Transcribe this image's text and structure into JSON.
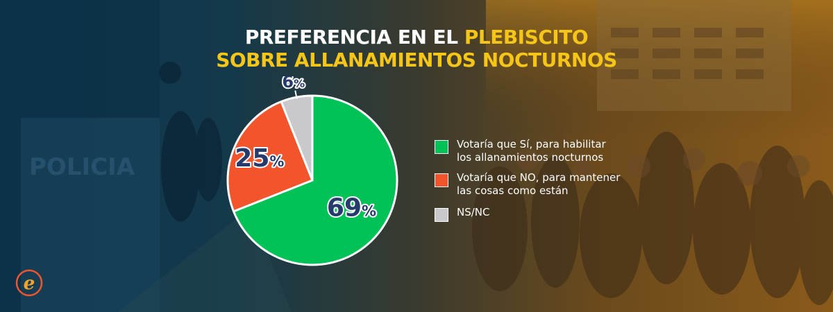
{
  "title": {
    "line1_white": "PREFERENCIA EN EL ",
    "line1_yellow": "PLEBISCITO",
    "line2_yellow": "SOBRE ALLANAMIENTOS NOCTURNOS"
  },
  "colors": {
    "accent_yellow": "#f5c518",
    "si": "#00c257",
    "no": "#f2552c",
    "nsnc": "#c9c9cd",
    "label_fill": "#263a6b"
  },
  "background": {
    "sign_text": "POLICIA"
  },
  "chart_data": {
    "type": "pie",
    "title": "PREFERENCIA EN EL PLEBISCITO SOBRE ALLANAMIENTOS NOCTURNOS",
    "slices": [
      {
        "name": "Votaría que Sí, para habilitar los allanamientos nocturnos",
        "value": 69,
        "label": "69",
        "color": "#00c257"
      },
      {
        "name": "Votaría que NO, para mantener las cosas como están",
        "value": 25,
        "label": "25",
        "color": "#f2552c"
      },
      {
        "name": "NS/NC",
        "value": 6,
        "label": "6",
        "color": "#c9c9cd"
      }
    ],
    "value_suffix": "%",
    "legend_position": "right"
  },
  "legend": {
    "items": [
      {
        "line1": "Votaría que Sí, para habilitar",
        "line2": "los allanamientos nocturnos"
      },
      {
        "line1": "Votaría que NO, para mantener",
        "line2": "las cosas como están"
      },
      {
        "line1": "NS/NC",
        "line2": ""
      }
    ]
  },
  "logo": {
    "icon": "e-logo-icon",
    "letter": "e"
  }
}
